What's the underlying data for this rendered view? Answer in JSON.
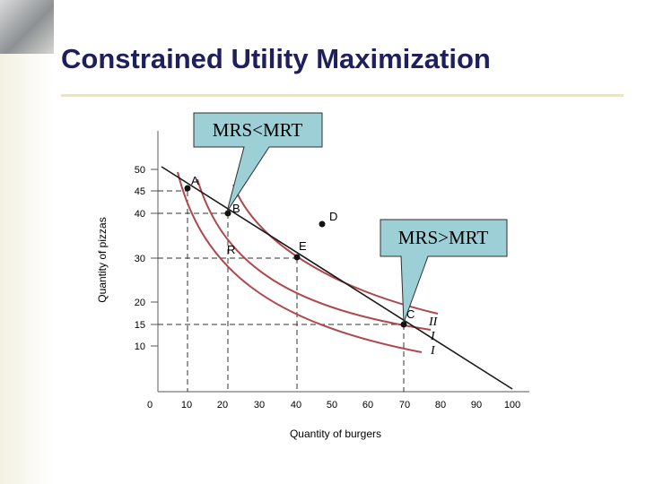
{
  "title": "Constrained Utility Maximization",
  "callouts": {
    "left": "MRS<MRT",
    "right": "MRS>MRT"
  },
  "axes": {
    "x_label": "Quantity of burgers",
    "y_label": "Quantity of pizzas",
    "x_ticks": [
      "0",
      "10",
      "20",
      "30",
      "40",
      "50",
      "60",
      "70",
      "80",
      "90",
      "100"
    ],
    "y_ticks": [
      "10",
      "15",
      "20",
      "30",
      "40",
      "45",
      "50"
    ]
  },
  "points": {
    "A": "A",
    "B": "B",
    "C": "C",
    "D": "D",
    "E": "E",
    "R": "R"
  },
  "curve_labels": [
    "II",
    "I",
    "I"
  ],
  "colors": {
    "title": "#1f1f5c",
    "callout_fill": "#9ccfd6",
    "curve": "#b0474c",
    "budget_line": "#1a1a1a",
    "rule": "#efe7b0"
  }
}
